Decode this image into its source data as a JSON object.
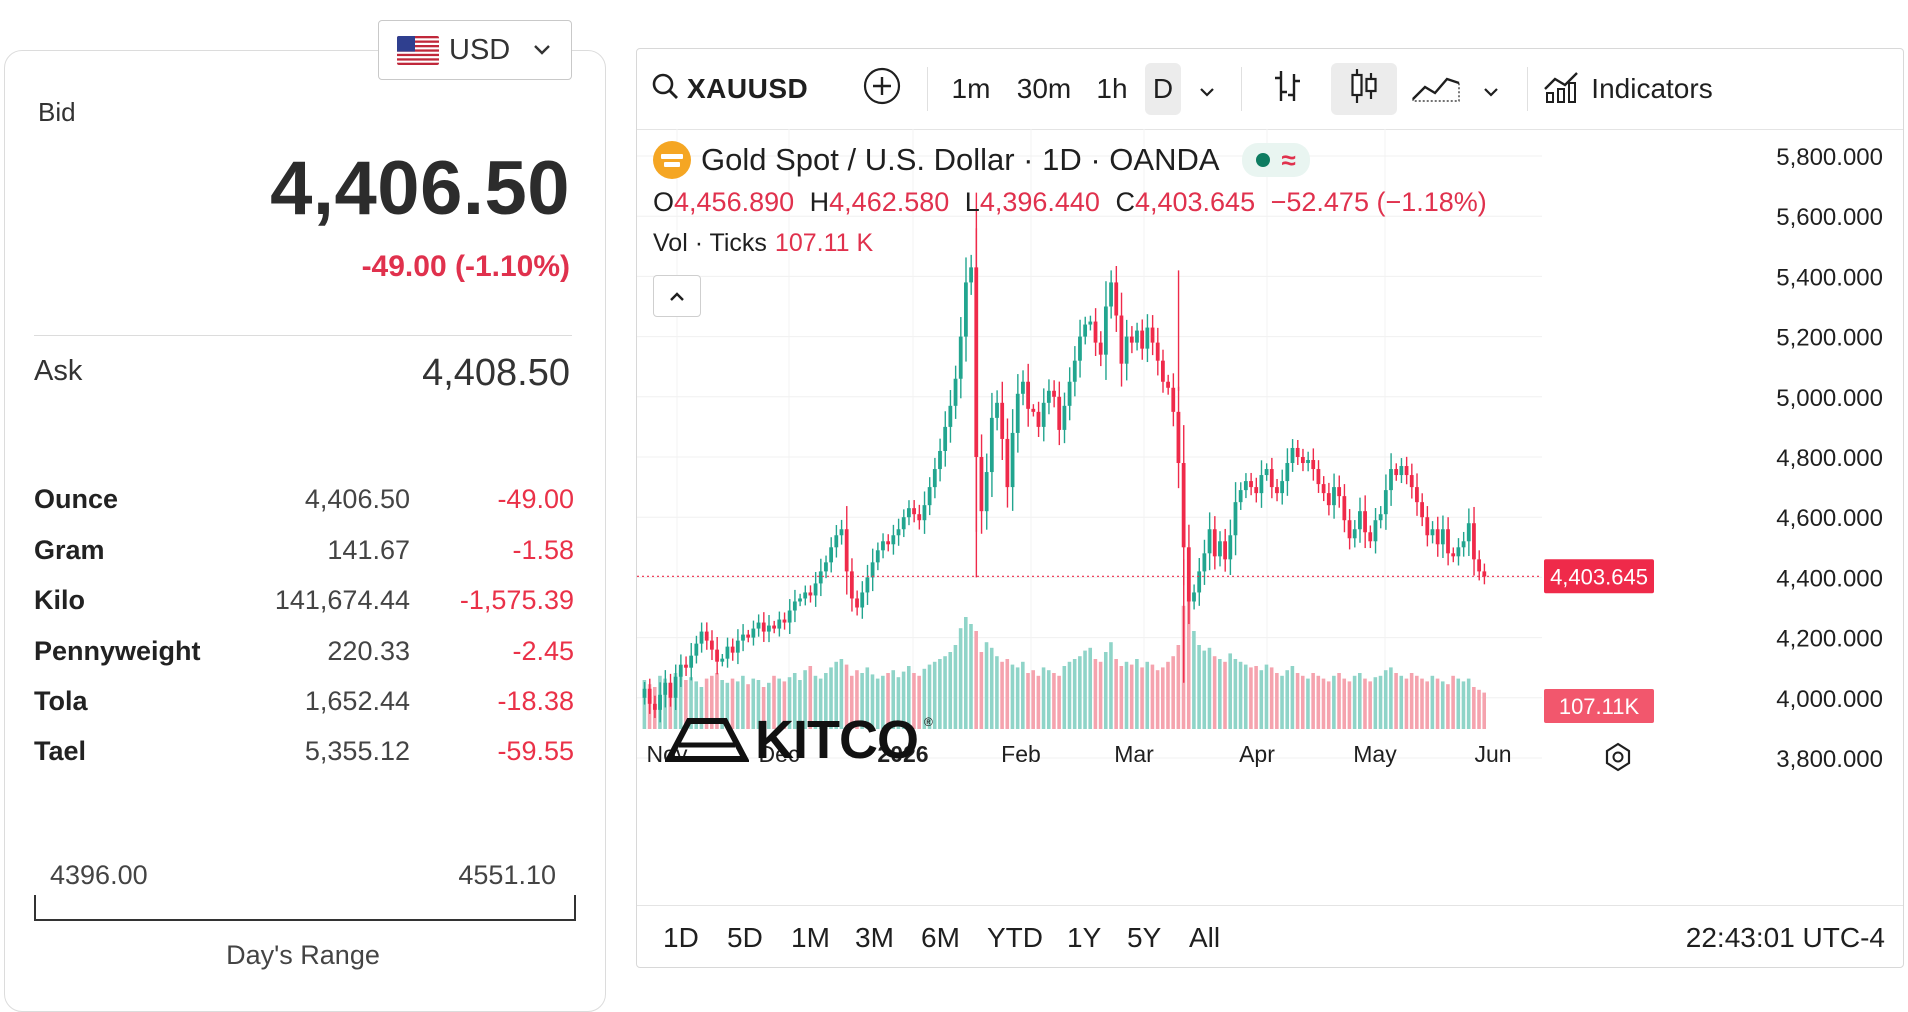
{
  "currency": {
    "code": "USD",
    "flag": "us-flag-icon",
    "chevron": "chevron-down-icon"
  },
  "bid": {
    "label": "Bid",
    "value": "4,406.50",
    "change": "-49.00 (-1.10%)"
  },
  "ask": {
    "label": "Ask",
    "value": "4,408.50"
  },
  "units": [
    {
      "name": "Ounce",
      "price": "4,406.50",
      "change": "-49.00"
    },
    {
      "name": "Gram",
      "price": "141.67",
      "change": "-1.58"
    },
    {
      "name": "Kilo",
      "price": "141,674.44",
      "change": "-1,575.39"
    },
    {
      "name": "Pennyweight",
      "price": "220.33",
      "change": "-2.45"
    },
    {
      "name": "Tola",
      "price": "1,652.44",
      "change": "-18.38"
    },
    {
      "name": "Tael",
      "price": "5,355.12",
      "change": "-59.55"
    }
  ],
  "day_range": {
    "low": "4396.00",
    "high": "4551.10",
    "label": "Day's Range"
  },
  "toolbar": {
    "symbol": "XAUUSD",
    "intervals": [
      "1m",
      "30m",
      "1h",
      "D"
    ],
    "active_interval": "D",
    "indicators_label": "Indicators"
  },
  "chart_header": {
    "title": "Gold Spot / U.S. Dollar · 1D · OANDA",
    "o_label": "O",
    "o": "4,456.890",
    "h_label": "H",
    "h": "4,462.580",
    "l_label": "L",
    "l": "4,396.440",
    "c_label": "C",
    "c": "4,403.645",
    "change": "−52.475 (−1.18%)",
    "vol_label": "Vol · Ticks",
    "vol": "107.11 K",
    "collapse_icon": "chevron-up-icon"
  },
  "logo": {
    "text": "KITCO",
    "reg": "®"
  },
  "range_tabs": [
    "1D",
    "5D",
    "1M",
    "3M",
    "6M",
    "YTD",
    "1Y",
    "5Y",
    "All"
  ],
  "clock": "22:43:01 UTC-4",
  "colors": {
    "up": "#22a58f",
    "down": "#ef2a4a",
    "up_vol": "#8fd4c8",
    "down_vol": "#f5a3ae",
    "accent": "#e0314d"
  },
  "chart_data": {
    "type": "candlestick",
    "y_ticks": [
      "5,800.000",
      "5,600.000",
      "5,400.000",
      "5,200.000",
      "5,000.000",
      "4,800.000",
      "4,600.000",
      "4,400.000",
      "4,200.000",
      "4,000.000",
      "3,800.000"
    ],
    "x_ticks": [
      "Nov",
      "Dec",
      "2026",
      "Feb",
      "Mar",
      "Apr",
      "May",
      "Jun"
    ],
    "last_price_label": "4,403.645",
    "last_volume_label": "107.11K",
    "ylim": [
      3800,
      5800
    ],
    "closes": [
      4030,
      3980,
      3960,
      4010,
      4050,
      4000,
      4070,
      4110,
      4100,
      4140,
      4180,
      4220,
      4190,
      4160,
      4120,
      4130,
      4170,
      4150,
      4190,
      4210,
      4200,
      4230,
      4250,
      4220,
      4240,
      4230,
      4260,
      4250,
      4290,
      4320,
      4330,
      4350,
      4340,
      4380,
      4420,
      4450,
      4500,
      4540,
      4560,
      4420,
      4330,
      4300,
      4350,
      4400,
      4450,
      4490,
      4520,
      4510,
      4540,
      4560,
      4600,
      4630,
      4610,
      4590,
      4640,
      4700,
      4760,
      4820,
      4900,
      4970,
      5060,
      5200,
      5380,
      5430,
      4800,
      4620,
      4750,
      4930,
      4980,
      4860,
      4700,
      4880,
      5010,
      5050,
      4960,
      4950,
      4900,
      4980,
      5020,
      5000,
      4890,
      4970,
      5050,
      5120,
      5200,
      5240,
      5250,
      5180,
      5140,
      5300,
      5380,
      5270,
      5110,
      5200,
      5180,
      5220,
      5160,
      5230,
      5180,
      5120,
      5050,
      5030,
      4950,
      4780,
      4500,
      4320,
      4350,
      4420,
      4480,
      4560,
      4470,
      4520,
      4460,
      4540,
      4650,
      4690,
      4720,
      4700,
      4680,
      4740,
      4760,
      4700,
      4680,
      4720,
      4780,
      4830,
      4800,
      4780,
      4790,
      4760,
      4710,
      4680,
      4640,
      4700,
      4670,
      4590,
      4530,
      4560,
      4620,
      4550,
      4520,
      4590,
      4610,
      4690,
      4760,
      4740,
      4770,
      4740,
      4700,
      4650,
      4600,
      4540,
      4560,
      4510,
      4560,
      4480,
      4470,
      4500,
      4520,
      4580,
      4460,
      4420,
      4403
    ],
    "volumes": [
      35,
      32,
      30,
      38,
      36,
      33,
      40,
      42,
      35,
      37,
      34,
      30,
      36,
      38,
      40,
      35,
      33,
      36,
      34,
      38,
      32,
      36,
      35,
      30,
      33,
      38,
      36,
      34,
      37,
      40,
      35,
      42,
      45,
      38,
      36,
      40,
      44,
      48,
      50,
      46,
      38,
      42,
      40,
      44,
      39,
      36,
      38,
      40,
      42,
      37,
      41,
      45,
      40,
      38,
      43,
      46,
      48,
      50,
      52,
      55,
      60,
      72,
      80,
      75,
      70,
      55,
      62,
      58,
      52,
      48,
      50,
      46,
      44,
      48,
      40,
      42,
      38,
      44,
      42,
      40,
      38,
      45,
      48,
      50,
      52,
      56,
      58,
      50,
      48,
      55,
      62,
      50,
      45,
      48,
      46,
      50,
      44,
      48,
      46,
      42,
      44,
      48,
      52,
      60,
      88,
      92,
      70,
      60,
      56,
      58,
      52,
      50,
      48,
      54,
      50,
      48,
      46,
      44,
      45,
      42,
      46,
      44,
      40,
      38,
      42,
      45,
      40,
      38,
      36,
      40,
      38,
      36,
      34,
      38,
      40,
      36,
      34,
      38,
      40,
      36,
      34,
      37,
      38,
      42,
      44,
      40,
      38,
      36,
      40,
      38,
      36,
      34,
      38,
      36,
      34,
      32,
      38,
      36,
      34,
      36,
      30,
      28,
      26
    ],
    "volume_ylim": [
      0,
      100
    ]
  }
}
